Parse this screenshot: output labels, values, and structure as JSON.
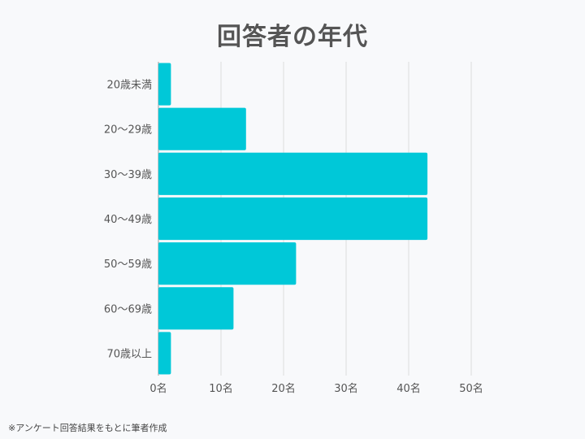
{
  "chart_data": {
    "type": "bar",
    "orientation": "horizontal",
    "title": "回答者の年代",
    "categories": [
      "20歳未満",
      "20～29歳",
      "30～39歳",
      "40～49歳",
      "50～59歳",
      "60～69歳",
      "70歳以上"
    ],
    "values": [
      2,
      14,
      43,
      43,
      22,
      12,
      2
    ],
    "xlim": [
      0,
      50
    ],
    "x_ticks": [
      "0名",
      "10名",
      "20名",
      "30名",
      "40名",
      "50名"
    ],
    "grid": true,
    "bar_color": "#00c8d8"
  },
  "footer": {
    "note": "※アンケート回答結果をもとに筆者作成"
  }
}
